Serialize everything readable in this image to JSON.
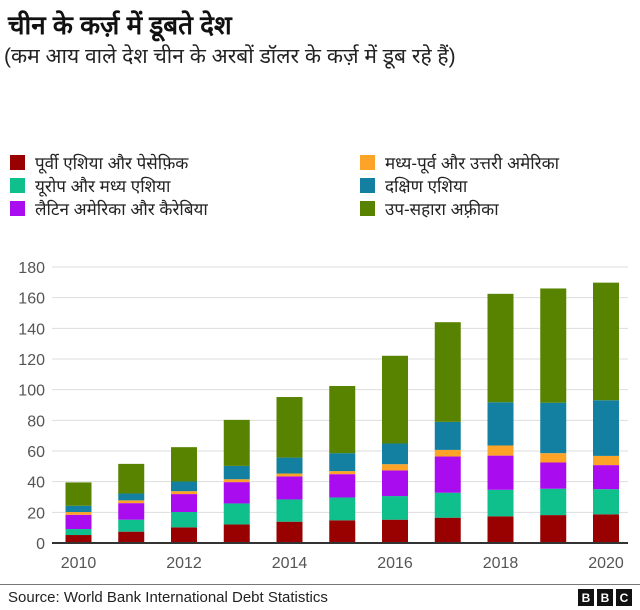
{
  "title": "चीन के कर्ज़ में डूबते देश",
  "subtitle": "(कम आय वाले देश चीन के अरबों डॉलर के कर्ज़ में डूब रहे हैं)",
  "source": "Source: World Bank International Debt Statistics",
  "logo": [
    "B",
    "B",
    "C"
  ],
  "chart_data": {
    "type": "bar",
    "stacked": true,
    "categories": [
      "2010",
      "2011",
      "2012",
      "2013",
      "2014",
      "2015",
      "2016",
      "2017",
      "2018",
      "2019",
      "2020"
    ],
    "x_tick_labels": [
      "2010",
      "2012",
      "2014",
      "2016",
      "2018",
      "2020"
    ],
    "y_tick_labels": [
      "0",
      "20",
      "40",
      "60",
      "80",
      "100",
      "120",
      "140",
      "160",
      "180"
    ],
    "ylim": [
      0,
      180
    ],
    "grid": true,
    "legend_position": "top",
    "series": [
      {
        "name": "पूर्वी एशिया और पेसेफ़िक",
        "color": "#990000",
        "values": [
          5.2,
          7.4,
          10.2,
          12.1,
          13.9,
          14.8,
          15.2,
          16.5,
          17.4,
          18.2,
          18.7
        ]
      },
      {
        "name": "यूरोप और मध्य एशिया",
        "color": "#0fbf8c",
        "values": [
          3.9,
          7.8,
          10.0,
          13.7,
          14.5,
          14.9,
          15.4,
          16.3,
          17.3,
          17.2,
          16.4
        ]
      },
      {
        "name": "लैटिन अमेरिका और कैरेबिया",
        "color": "#aa0cf0",
        "values": [
          9.3,
          10.8,
          11.7,
          13.9,
          15.0,
          15.2,
          16.7,
          23.6,
          22.3,
          17.1,
          15.7
        ]
      },
      {
        "name": "मध्य-पूर्व और उत्तरी अमेरिका",
        "color": "#fda428",
        "values": [
          1.8,
          1.8,
          1.9,
          1.9,
          1.9,
          2.0,
          4.1,
          4.3,
          6.6,
          6.1,
          6.0
        ]
      },
      {
        "name": "दक्षिण एशिया",
        "color": "#1380a1",
        "values": [
          4.1,
          4.5,
          6.3,
          8.7,
          10.4,
          11.7,
          13.5,
          18.3,
          28.2,
          32.9,
          36.3
        ]
      },
      {
        "name": "उप-सहारा अफ़्रीका",
        "color": "#588300",
        "values": [
          15.2,
          19.3,
          22.4,
          30.0,
          39.5,
          43.8,
          57.2,
          65.0,
          70.7,
          74.5,
          76.7
        ]
      }
    ]
  }
}
